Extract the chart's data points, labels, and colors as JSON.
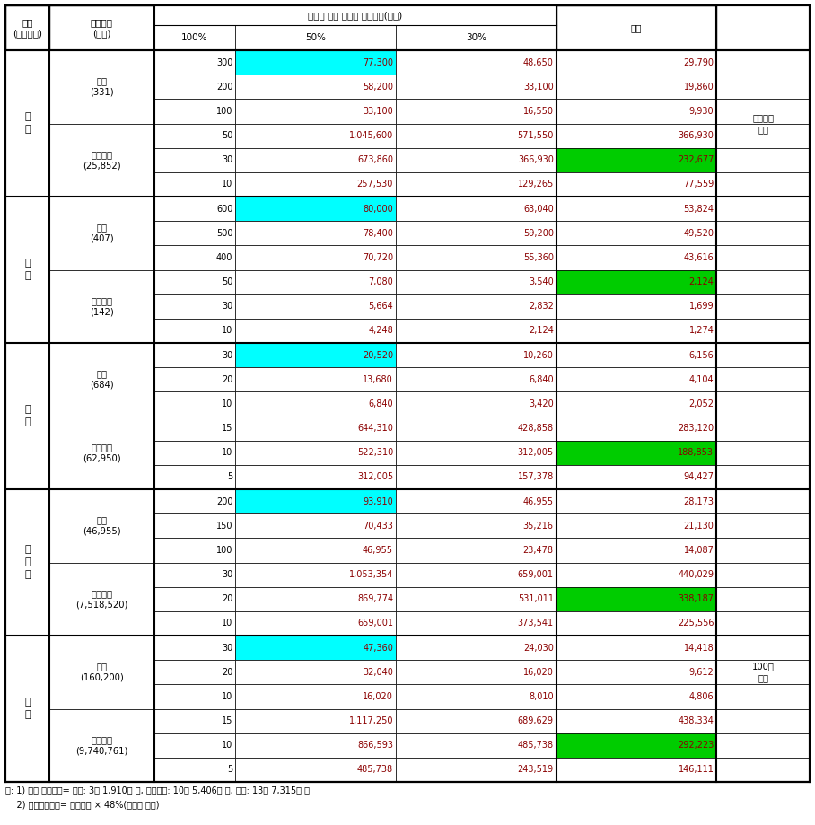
{
  "rows": [
    {
      "unit": "300",
      "v100": "77,300",
      "v50": "48,650",
      "v30": "29,790",
      "bg100": "cyan",
      "bg30": "none"
    },
    {
      "unit": "200",
      "v100": "58,200",
      "v50": "33,100",
      "v30": "19,860",
      "bg100": "none",
      "bg30": "none"
    },
    {
      "unit": "100",
      "v100": "33,100",
      "v50": "16,550",
      "v30": "9,930",
      "bg100": "none",
      "bg30": "none"
    },
    {
      "unit": "50",
      "v100": "1,045,600",
      "v50": "571,550",
      "v30": "366,930",
      "bg100": "none",
      "bg30": "none"
    },
    {
      "unit": "30",
      "v100": "673,860",
      "v50": "366,930",
      "v30": "232,677",
      "bg100": "none",
      "bg30": "green"
    },
    {
      "unit": "10",
      "v100": "257,530",
      "v50": "129,265",
      "v30": "77,559",
      "bg100": "none",
      "bg30": "none"
    },
    {
      "unit": "600",
      "v100": "80,000",
      "v50": "63,040",
      "v30": "53,824",
      "bg100": "cyan",
      "bg30": "none"
    },
    {
      "unit": "500",
      "v100": "78,400",
      "v50": "59,200",
      "v30": "49,520",
      "bg100": "none",
      "bg30": "none"
    },
    {
      "unit": "400",
      "v100": "70,720",
      "v50": "55,360",
      "v30": "43,616",
      "bg100": "none",
      "bg30": "none"
    },
    {
      "unit": "50",
      "v100": "7,080",
      "v50": "3,540",
      "v30": "2,124",
      "bg100": "none",
      "bg30": "green"
    },
    {
      "unit": "30",
      "v100": "5,664",
      "v50": "2,832",
      "v30": "1,699",
      "bg100": "none",
      "bg30": "none"
    },
    {
      "unit": "10",
      "v100": "4,248",
      "v50": "2,124",
      "v30": "1,274",
      "bg100": "none",
      "bg30": "none"
    },
    {
      "unit": "30",
      "v100": "20,520",
      "v50": "10,260",
      "v30": "6,156",
      "bg100": "cyan",
      "bg30": "none"
    },
    {
      "unit": "20",
      "v100": "13,680",
      "v50": "6,840",
      "v30": "4,104",
      "bg100": "none",
      "bg30": "none"
    },
    {
      "unit": "10",
      "v100": "6,840",
      "v50": "3,420",
      "v30": "2,052",
      "bg100": "none",
      "bg30": "none"
    },
    {
      "unit": "15",
      "v100": "644,310",
      "v50": "428,858",
      "v30": "283,120",
      "bg100": "none",
      "bg30": "none"
    },
    {
      "unit": "10",
      "v100": "522,310",
      "v50": "312,005",
      "v30": "188,853",
      "bg100": "none",
      "bg30": "green"
    },
    {
      "unit": "5",
      "v100": "312,005",
      "v50": "157,378",
      "v30": "94,427",
      "bg100": "none",
      "bg30": "none"
    },
    {
      "unit": "200",
      "v100": "93,910",
      "v50": "46,955",
      "v30": "28,173",
      "bg100": "cyan",
      "bg30": "none"
    },
    {
      "unit": "150",
      "v100": "70,433",
      "v50": "35,216",
      "v30": "21,130",
      "bg100": "none",
      "bg30": "none"
    },
    {
      "unit": "100",
      "v100": "46,955",
      "v50": "23,478",
      "v30": "14,087",
      "bg100": "none",
      "bg30": "none"
    },
    {
      "unit": "30",
      "v100": "1,053,354",
      "v50": "659,001",
      "v30": "440,029",
      "bg100": "none",
      "bg30": "none"
    },
    {
      "unit": "20",
      "v100": "869,774",
      "v50": "531,011",
      "v30": "338,187",
      "bg100": "none",
      "bg30": "green"
    },
    {
      "unit": "10",
      "v100": "659,001",
      "v50": "373,541",
      "v30": "225,556",
      "bg100": "none",
      "bg30": "none"
    },
    {
      "unit": "30",
      "v100": "47,360",
      "v50": "24,030",
      "v30": "14,418",
      "bg100": "cyan",
      "bg30": "none"
    },
    {
      "unit": "20",
      "v100": "32,040",
      "v50": "16,020",
      "v30": "9,612",
      "bg100": "none",
      "bg30": "none"
    },
    {
      "unit": "10",
      "v100": "16,020",
      "v50": "8,010",
      "v30": "4,806",
      "bg100": "none",
      "bg30": "none"
    },
    {
      "unit": "15",
      "v100": "1,117,250",
      "v50": "689,629",
      "v30": "438,334",
      "bg100": "none",
      "bg30": "none"
    },
    {
      "unit": "10",
      "v100": "866,593",
      "v50": "485,738",
      "v30": "292,223",
      "bg100": "none",
      "bg30": "green"
    },
    {
      "unit": "5",
      "v100": "485,738",
      "v50": "243,519",
      "v30": "146,111",
      "bg100": "none",
      "bg30": "none"
    }
  ],
  "categories": [
    {
      "label": "한\n우",
      "start": 0,
      "end": 5
    },
    {
      "label": "젖\n소",
      "start": 6,
      "end": 11
    },
    {
      "label": "돼\n지",
      "start": 12,
      "end": 17
    },
    {
      "label": "산\n란\n계",
      "start": 18,
      "end": 23
    },
    {
      "label": "육\n계",
      "start": 24,
      "end": 29
    }
  ],
  "subcategories": [
    {
      "label": "유기\n(331)",
      "start": 0,
      "end": 2
    },
    {
      "label": "무항생제\n(25,852)",
      "start": 3,
      "end": 5
    },
    {
      "label": "유기\n(407)",
      "start": 6,
      "end": 8
    },
    {
      "label": "무항생제\n(142)",
      "start": 9,
      "end": 11
    },
    {
      "label": "유기\n(684)",
      "start": 12,
      "end": 14
    },
    {
      "label": "무항생제\n(62,950)",
      "start": 15,
      "end": 17
    },
    {
      "label": "유기\n(46,955)",
      "start": 18,
      "end": 20
    },
    {
      "label": "무항생제\n(7,518,520)",
      "start": 21,
      "end": 23
    },
    {
      "label": "유기\n(160,200)",
      "start": 24,
      "end": 26
    },
    {
      "label": "무항생제\n(9,740,761)",
      "start": 27,
      "end": 29
    }
  ],
  "notes": [
    {
      "label": "해외인증\n제외",
      "start": 0,
      "end": 5
    },
    {
      "label": "100수\n기준",
      "start": 21,
      "end": 29
    }
  ],
  "col_header_cat": "구분\n(사육두수)",
  "col_header_unit": "지원단가\n(천원)",
  "col_header_span": "직불금 대상 비율별 직불금액(천원)",
  "col_header_100": "100%",
  "col_header_50": "50%",
  "col_header_30": "30%",
  "col_header_note": "비고",
  "footnote1": "주: 1) 예상 직불금액= 유기: 3억 1,910만 원, 무항생제: 10억 5,406만 원, 합계: 13억 7,315만 원",
  "footnote2": "    2) 젖소사육두수= 사육두수 × 48%(착유우 비중)",
  "cyan": "#00FFFF",
  "green": "#00CC00",
  "data_red": "#8B0000",
  "black": "#000000",
  "white": "#FFFFFF",
  "category_boundaries": [
    0,
    6,
    12,
    18,
    24,
    30
  ]
}
